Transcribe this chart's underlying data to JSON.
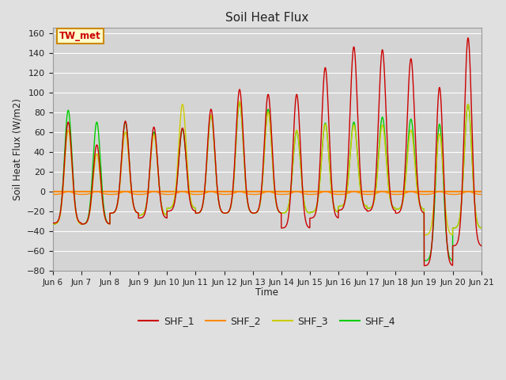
{
  "title": "Soil Heat Flux",
  "ylabel": "Soil Heat Flux (W/m2)",
  "xlabel": "Time",
  "ylim": [
    -80,
    165
  ],
  "yticks": [
    -80,
    -60,
    -40,
    -20,
    0,
    20,
    40,
    60,
    80,
    100,
    120,
    140,
    160
  ],
  "xtick_labels": [
    "Jun 6",
    "Jun 7",
    "Jun 8",
    "Jun 9",
    "Jun 10",
    "Jun 11",
    "Jun 12",
    "Jun 13",
    "Jun 14",
    "Jun 15",
    "Jun 16",
    "Jun 17",
    "Jun 18",
    "Jun 19",
    "Jun 20",
    "Jun 21"
  ],
  "colors": {
    "SHF_1": "#cc0000",
    "SHF_2": "#ff8800",
    "SHF_3": "#cccc00",
    "SHF_4": "#00cc00"
  },
  "fig_bg": "#e0e0e0",
  "plot_bg": "#d4d4d4",
  "grid_color": "#ffffff",
  "annotation_text": "TW_met",
  "annotation_bg": "#ffffcc",
  "annotation_border": "#cc8800",
  "annotation_text_color": "#cc0000",
  "hline_color": "#ff8800",
  "hline_lw": 1.5,
  "line_lw": 1.0,
  "n_per_day": 288,
  "n_days": 15,
  "amp1": [
    70,
    47,
    71,
    65,
    64,
    83,
    103,
    98,
    98,
    125,
    146,
    143,
    134,
    105,
    155
  ],
  "amp3": [
    62,
    38,
    60,
    57,
    88,
    77,
    91,
    80,
    62,
    68,
    67,
    67,
    62,
    58,
    88
  ],
  "amp4": [
    82,
    70,
    70,
    60,
    63,
    77,
    90,
    83,
    61,
    69,
    70,
    75,
    73,
    68,
    88
  ],
  "night1": [
    -32,
    -33,
    -22,
    -27,
    -20,
    -22,
    -22,
    -22,
    -37,
    -27,
    -19,
    -20,
    -22,
    -55,
    -55
  ],
  "night3": [
    -33,
    -33,
    -22,
    -24,
    -17,
    -22,
    -22,
    -22,
    -22,
    -21,
    -15,
    -17,
    -18,
    -44,
    -37
  ],
  "night4": [
    -33,
    -33,
    -22,
    -24,
    -17,
    -22,
    -22,
    -22,
    -22,
    -21,
    -15,
    -17,
    -18,
    -70,
    -37
  ]
}
